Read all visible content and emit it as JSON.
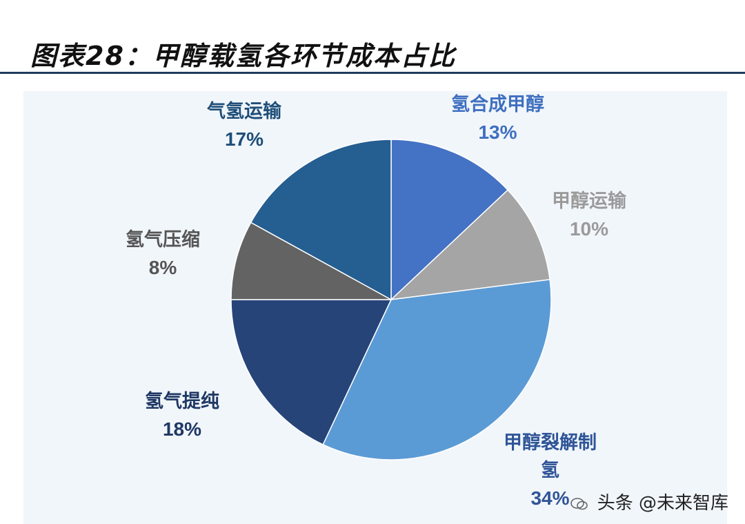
{
  "title": "图表28：甲醇载氢各环节成本占比",
  "chart_data": {
    "type": "pie",
    "slices": [
      {
        "label": "氢合成甲醇",
        "value": 13,
        "pct_label": "13%",
        "color": "#4472c4",
        "text_color": "#3f6fc0"
      },
      {
        "label": "甲醇运输",
        "value": 10,
        "pct_label": "10%",
        "color": "#a5a5a5",
        "text_color": "#9a9a9a"
      },
      {
        "label": "甲醇裂解制氢",
        "line1": "甲醇裂解制",
        "line2": "氢",
        "value": 34,
        "pct_label": "34%",
        "color": "#5b9bd5",
        "text_color": "#2f5597"
      },
      {
        "label": "氢气提纯",
        "value": 18,
        "pct_label": "18%",
        "color": "#264478",
        "text_color": "#1f3864"
      },
      {
        "label": "氢气压缩",
        "value": 8,
        "pct_label": "8%",
        "color": "#636363",
        "text_color": "#555555"
      },
      {
        "label": "气氢运输",
        "value": 17,
        "pct_label": "17%",
        "color": "#255e91",
        "text_color": "#1f4e79"
      }
    ],
    "start_angle": "12 o'clock",
    "direction": "clockwise",
    "legend": "none"
  },
  "watermark": {
    "text1": "头条",
    "text2": "@未来智库"
  }
}
